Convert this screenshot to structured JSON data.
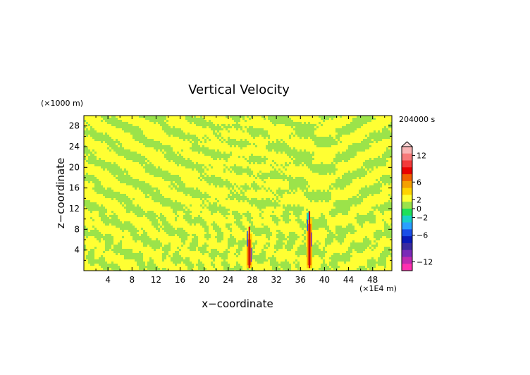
{
  "chart_data": {
    "type": "heatmap",
    "title": "Vertical Velocity",
    "xlabel": "x−coordinate",
    "ylabel": "z−coordinate",
    "x_units": "(×1E4 m)",
    "y_units": "(×1000 m)",
    "time_label": "204000 s",
    "xlim": [
      0,
      51.2
    ],
    "ylim": [
      0,
      30
    ],
    "x_ticks": [
      "4",
      "8",
      "12",
      "16",
      "20",
      "24",
      "28",
      "32",
      "36",
      "40",
      "44",
      "48"
    ],
    "y_ticks": [
      "4",
      "8",
      "12",
      "16",
      "20",
      "24",
      "28"
    ],
    "grid": false,
    "legend_placement": "right",
    "colorbar": {
      "range": [
        -14,
        14
      ],
      "labels": [
        "12",
        "6",
        "2",
        "0",
        "−2",
        "−6",
        "−12"
      ],
      "colors": [
        "#f9b4b4",
        "#f77a7a",
        "#f23a3a",
        "#e80000",
        "#f06000",
        "#f5a000",
        "#ffd400",
        "#ffff33",
        "#9be34a",
        "#1ee05a",
        "#18d0c8",
        "#2aa0ff",
        "#1a4ee8",
        "#0a1ab8",
        "#3a2aa0",
        "#7a2ab8",
        "#c02ab0",
        "#ff30b0"
      ]
    },
    "background_colors": {
      "positive": "#ffff33",
      "negative": "#9be34a"
    },
    "updraft_columns": [
      {
        "x": 27.5,
        "z_bottom": 0.5,
        "z_top": 8.5
      },
      {
        "x": 37.5,
        "z_bottom": 0.5,
        "z_top": 11.5
      }
    ]
  }
}
